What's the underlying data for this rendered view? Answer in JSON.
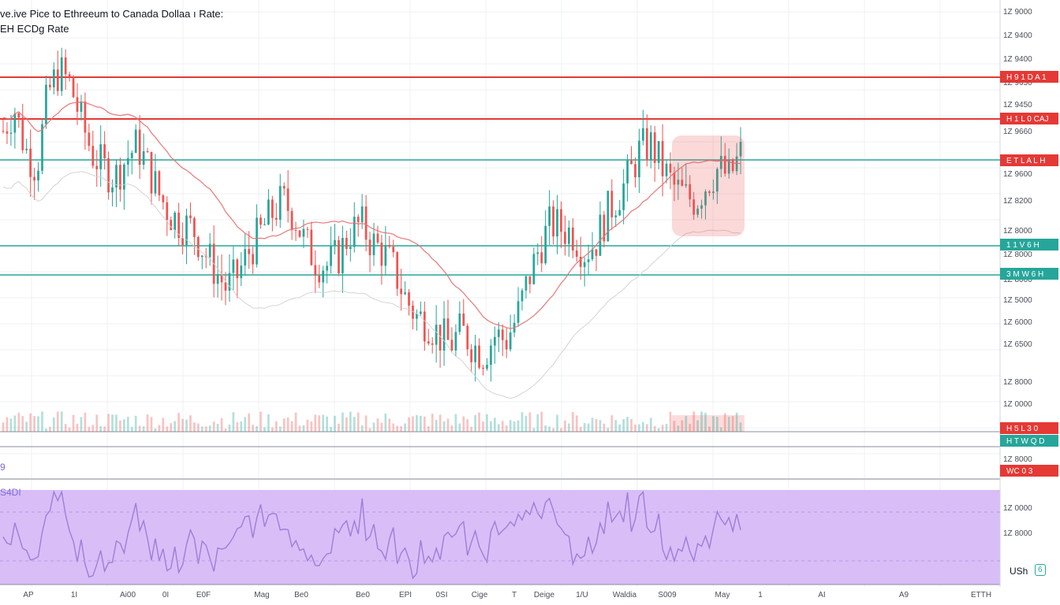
{
  "header": {
    "title": "ve.ive Pice to Ethreeum to Canada Dollaa ı Rate:",
    "subtitle": "EH ECDg Rate"
  },
  "rsi": {
    "label": "S4DI"
  },
  "volume": {
    "label": "9"
  },
  "currency": {
    "label": "USh",
    "badge": "6"
  },
  "colors": {
    "up": "#26a69a",
    "down": "#ef5350",
    "red_line": "#e53935",
    "teal_line": "#26a69a",
    "rsi_fill": "#d9bdf7",
    "rsi_line": "#9b7fd8",
    "ma": "#e57373",
    "grid": "#eef0f3"
  },
  "chart_data": [
    {
      "type": "candlestick",
      "title": "ve.ive Pice to Ethreeum to Canada Dollaa ı Rate:",
      "subtitle": "EH ECDg Rate",
      "x_tick_labels": [
        "AP",
        "1I",
        "Ai00",
        "0I",
        "E0F",
        "Mag",
        "Be0",
        "Be0",
        "EPI",
        "0SI",
        "Cige",
        "T",
        "Deige",
        "1/U",
        "Waldia",
        "S009",
        "May",
        "1",
        "AI",
        "A9",
        "ETTH"
      ],
      "y_tick_labels": [
        "1Z 9000",
        "1Z 9400",
        "1Z 9400",
        "1Z 9650",
        "1Z 9450",
        "1Z 9660",
        "1Z 9600",
        "1Z 8200",
        "1Z 8000",
        "1Z 8000",
        "1Z 8000",
        "1Z 5000",
        "1Z 6000",
        "1Z 6500",
        "1Z 8000",
        "1Z 0000",
        "1Z 8000",
        "1Z 0000",
        "1Z 8000"
      ],
      "price_markers": [
        {
          "label": "H 9 1 D A 1",
          "kind": "resistance"
        },
        {
          "label": "H 1 L 0 CAJ",
          "kind": "resistance"
        },
        {
          "label": "E T L A L H",
          "kind": "resistance"
        },
        {
          "label": "1 1 V 6 H",
          "kind": "support"
        },
        {
          "label": "3 M W 6 H",
          "kind": "support"
        },
        {
          "label": "H T W Q D",
          "kind": "support"
        },
        {
          "label": "H 5 L 3 0",
          "kind": "resistance"
        },
        {
          "label": "WC 0 3",
          "kind": "resistance"
        }
      ],
      "closes": [
        1920,
        1945,
        1900,
        1880,
        1960,
        1985,
        1970,
        1930,
        1895,
        1880,
        1870,
        1890,
        1905,
        1880,
        1850,
        1830,
        1820,
        1815,
        1790,
        1770,
        1750,
        1765,
        1790,
        1810,
        1830,
        1845,
        1830,
        1800,
        1780,
        1775,
        1785,
        1810,
        1820,
        1800,
        1790,
        1770,
        1740,
        1720,
        1715,
        1700,
        1690,
        1705,
        1690,
        1680,
        1700,
        1695,
        1720,
        1760,
        1795,
        1820,
        1815,
        1810,
        1790,
        1800,
        1830,
        1850,
        1870,
        1900,
        1905,
        1880,
        1860,
        1850,
        1845,
        1865,
        1880,
        1870,
        1895
      ],
      "series": [
        {
          "name": "",
          "kind": "moving_average"
        },
        {
          "name": "",
          "kind": "envelope"
        }
      ],
      "legend": "none",
      "grid": true
    },
    {
      "type": "bar",
      "title": "9",
      "series_kind": "volume"
    },
    {
      "type": "line",
      "title": "S4DI",
      "series_kind": "oscillator",
      "ylim": [
        0,
        100
      ]
    }
  ]
}
